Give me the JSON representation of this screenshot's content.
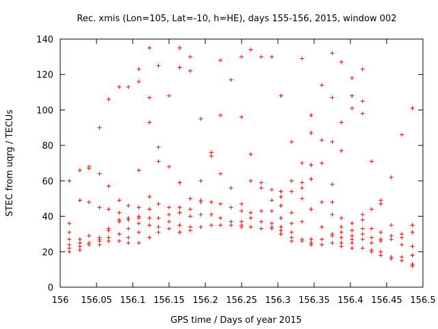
{
  "chart_data": {
    "type": "scatter",
    "title": "Rec. xmis (Lon=105, Lat=-10, h=HE), days 155-156, 2015, window 002",
    "xlabel": "GPS time / Days of year 2015",
    "ylabel": "STEC from uqrg / TECUs",
    "xlim": [
      156,
      156.5
    ],
    "ylim": [
      0,
      140
    ],
    "x_ticks": [
      "156",
      "156.05",
      "156.1",
      "156.15",
      "156.2",
      "156.25",
      "156.3",
      "156.35",
      "156.4",
      "156.45",
      "156.5"
    ],
    "y_ticks": [
      "0",
      "20",
      "40",
      "60",
      "80",
      "100",
      "120",
      "140"
    ],
    "grid": false,
    "legend": "none",
    "marker": "plus",
    "color": "#ff0000",
    "series": [
      {
        "points": [
          [
            156.0125,
            60
          ],
          [
            156.0125,
            36
          ],
          [
            156.0125,
            31
          ],
          [
            156.0125,
            27
          ],
          [
            156.0125,
            24
          ],
          [
            156.0125,
            22
          ],
          [
            156.0125,
            20
          ],
          [
            156.0271,
            66
          ],
          [
            156.0271,
            49
          ],
          [
            156.0271,
            27
          ],
          [
            156.0271,
            25
          ],
          [
            156.0271,
            23
          ],
          [
            156.0271,
            21
          ],
          [
            156.0396,
            68
          ],
          [
            156.0396,
            67
          ],
          [
            156.0396,
            48
          ],
          [
            156.0396,
            29
          ],
          [
            156.0396,
            25
          ],
          [
            156.0396,
            24
          ],
          [
            156.0542,
            90
          ],
          [
            156.0542,
            64
          ],
          [
            156.0542,
            45
          ],
          [
            156.0542,
            28
          ],
          [
            156.0542,
            27
          ],
          [
            156.0542,
            26
          ],
          [
            156.0542,
            24
          ],
          [
            156.0667,
            106
          ],
          [
            156.0667,
            57
          ],
          [
            156.0667,
            44
          ],
          [
            156.0667,
            33
          ],
          [
            156.0667,
            32
          ],
          [
            156.0667,
            28
          ],
          [
            156.0667,
            26
          ],
          [
            156.0813,
            113
          ],
          [
            156.0813,
            49
          ],
          [
            156.0813,
            42
          ],
          [
            156.0813,
            38
          ],
          [
            156.0813,
            37
          ],
          [
            156.0813,
            30
          ],
          [
            156.0813,
            26
          ],
          [
            156.0938,
            113
          ],
          [
            156.0938,
            46
          ],
          [
            156.0938,
            39
          ],
          [
            156.0938,
            38
          ],
          [
            156.0938,
            33
          ],
          [
            156.0938,
            28
          ],
          [
            156.0938,
            25
          ],
          [
            156.1083,
            123
          ],
          [
            156.1083,
            116
          ],
          [
            156.1083,
            66
          ],
          [
            156.1083,
            45
          ],
          [
            156.1083,
            40
          ],
          [
            156.1083,
            39
          ],
          [
            156.1083,
            36
          ],
          [
            156.1083,
            31
          ],
          [
            156.1083,
            25
          ],
          [
            156.1229,
            135
          ],
          [
            156.1229,
            107
          ],
          [
            156.1229,
            93
          ],
          [
            156.1229,
            51
          ],
          [
            156.1229,
            44
          ],
          [
            156.1229,
            39
          ],
          [
            156.1229,
            35
          ],
          [
            156.1229,
            28
          ],
          [
            156.1354,
            125
          ],
          [
            156.1354,
            79
          ],
          [
            156.1354,
            71
          ],
          [
            156.1354,
            47
          ],
          [
            156.1354,
            39
          ],
          [
            156.1354,
            34
          ],
          [
            156.1354,
            31
          ],
          [
            156.15,
            108
          ],
          [
            156.15,
            68
          ],
          [
            156.15,
            45
          ],
          [
            156.15,
            41
          ],
          [
            156.15,
            37
          ],
          [
            156.15,
            33
          ],
          [
            156.1646,
            135
          ],
          [
            156.1646,
            124
          ],
          [
            156.1646,
            59
          ],
          [
            156.1646,
            45
          ],
          [
            156.1646,
            42
          ],
          [
            156.1646,
            35
          ],
          [
            156.1646,
            31
          ],
          [
            156.1792,
            130
          ],
          [
            156.1792,
            122
          ],
          [
            156.1792,
            50
          ],
          [
            156.1792,
            44
          ],
          [
            156.1792,
            40
          ],
          [
            156.1792,
            34
          ],
          [
            156.1792,
            32
          ],
          [
            156.1938,
            95
          ],
          [
            156.1938,
            60
          ],
          [
            156.1938,
            49
          ],
          [
            156.1938,
            48
          ],
          [
            156.1938,
            41
          ],
          [
            156.1938,
            34
          ],
          [
            156.2083,
            76
          ],
          [
            156.2083,
            74
          ],
          [
            156.2083,
            48
          ],
          [
            156.2083,
            41
          ],
          [
            156.2083,
            35
          ],
          [
            156.2208,
            128
          ],
          [
            156.2208,
            97
          ],
          [
            156.2208,
            64
          ],
          [
            156.2208,
            47
          ],
          [
            156.2208,
            39
          ],
          [
            156.2208,
            35
          ],
          [
            156.2354,
            117
          ],
          [
            156.2354,
            56
          ],
          [
            156.2354,
            45
          ],
          [
            156.2354,
            37
          ],
          [
            156.2354,
            35
          ],
          [
            156.25,
            130
          ],
          [
            156.25,
            96
          ],
          [
            156.25,
            47
          ],
          [
            156.25,
            43
          ],
          [
            156.25,
            37
          ],
          [
            156.25,
            35
          ],
          [
            156.25,
            34
          ],
          [
            156.2625,
            134
          ],
          [
            156.2625,
            75
          ],
          [
            156.2625,
            60
          ],
          [
            156.2625,
            42
          ],
          [
            156.2625,
            39
          ],
          [
            156.2625,
            34
          ],
          [
            156.2771,
            130
          ],
          [
            156.2771,
            59
          ],
          [
            156.2771,
            56
          ],
          [
            156.2771,
            43
          ],
          [
            156.2771,
            37
          ],
          [
            156.2771,
            33
          ],
          [
            156.2917,
            130
          ],
          [
            156.2917,
            55
          ],
          [
            156.2917,
            49
          ],
          [
            156.2917,
            43
          ],
          [
            156.2917,
            36
          ],
          [
            156.2917,
            34
          ],
          [
            156.2917,
            33
          ],
          [
            156.3042,
            108
          ],
          [
            156.3042,
            54
          ],
          [
            156.3042,
            51
          ],
          [
            156.3042,
            46
          ],
          [
            156.3042,
            39
          ],
          [
            156.3042,
            34
          ],
          [
            156.3042,
            32
          ],
          [
            156.3042,
            30
          ],
          [
            156.3188,
            82
          ],
          [
            156.3188,
            60
          ],
          [
            156.3188,
            54
          ],
          [
            156.3188,
            42
          ],
          [
            156.3188,
            36
          ],
          [
            156.3188,
            31
          ],
          [
            156.3188,
            28
          ],
          [
            156.3188,
            26
          ],
          [
            156.3333,
            129
          ],
          [
            156.3333,
            70
          ],
          [
            156.3333,
            59
          ],
          [
            156.3333,
            56
          ],
          [
            156.3333,
            50
          ],
          [
            156.3333,
            37
          ],
          [
            156.3333,
            27
          ],
          [
            156.3333,
            26
          ],
          [
            156.3458,
            97
          ],
          [
            156.3458,
            87
          ],
          [
            156.3458,
            69
          ],
          [
            156.3458,
            61
          ],
          [
            156.3458,
            44
          ],
          [
            156.3458,
            27
          ],
          [
            156.3458,
            25
          ],
          [
            156.3458,
            24
          ],
          [
            156.3604,
            114
          ],
          [
            156.3604,
            83
          ],
          [
            156.3604,
            70
          ],
          [
            156.3604,
            48
          ],
          [
            156.3604,
            34
          ],
          [
            156.3604,
            27
          ],
          [
            156.3604,
            24
          ],
          [
            156.375,
            132
          ],
          [
            156.375,
            107
          ],
          [
            156.375,
            82
          ],
          [
            156.375,
            58
          ],
          [
            156.375,
            48
          ],
          [
            156.375,
            41
          ],
          [
            156.375,
            30
          ],
          [
            156.375,
            29
          ],
          [
            156.375,
            25
          ],
          [
            156.3875,
            127
          ],
          [
            156.3875,
            93
          ],
          [
            156.3875,
            77
          ],
          [
            156.3875,
            39
          ],
          [
            156.3875,
            34
          ],
          [
            156.3875,
            31
          ],
          [
            156.3875,
            28
          ],
          [
            156.3875,
            25
          ],
          [
            156.3875,
            23
          ],
          [
            156.4021,
            118
          ],
          [
            156.4021,
            108
          ],
          [
            156.4021,
            101
          ],
          [
            156.4021,
            36
          ],
          [
            156.4021,
            32
          ],
          [
            156.4021,
            29
          ],
          [
            156.4021,
            27
          ],
          [
            156.4021,
            25
          ],
          [
            156.4021,
            22
          ],
          [
            156.4167,
            123
          ],
          [
            156.4167,
            105
          ],
          [
            156.4167,
            98
          ],
          [
            156.4167,
            41
          ],
          [
            156.4167,
            38
          ],
          [
            156.4167,
            33
          ],
          [
            156.4167,
            30
          ],
          [
            156.4167,
            27
          ],
          [
            156.4167,
            22
          ],
          [
            156.4292,
            71
          ],
          [
            156.4292,
            44
          ],
          [
            156.4292,
            33
          ],
          [
            156.4292,
            28
          ],
          [
            156.4292,
            25
          ],
          [
            156.4292,
            21
          ],
          [
            156.4292,
            20
          ],
          [
            156.4417,
            49
          ],
          [
            156.4417,
            47
          ],
          [
            156.4417,
            31
          ],
          [
            156.4417,
            27
          ],
          [
            156.4417,
            26
          ],
          [
            156.4417,
            20
          ],
          [
            156.4417,
            18
          ],
          [
            156.4563,
            62
          ],
          [
            156.4563,
            35
          ],
          [
            156.4563,
            29
          ],
          [
            156.4563,
            27
          ],
          [
            156.4563,
            17
          ],
          [
            156.4563,
            16
          ],
          [
            156.4708,
            86
          ],
          [
            156.4708,
            30
          ],
          [
            156.4708,
            28
          ],
          [
            156.4708,
            24
          ],
          [
            156.4708,
            17
          ],
          [
            156.4708,
            15
          ],
          [
            156.4854,
            101
          ],
          [
            156.4854,
            35
          ],
          [
            156.4854,
            31
          ],
          [
            156.4854,
            23
          ],
          [
            156.4854,
            18
          ],
          [
            156.4854,
            13
          ],
          [
            156.4854,
            12
          ]
        ]
      }
    ]
  }
}
